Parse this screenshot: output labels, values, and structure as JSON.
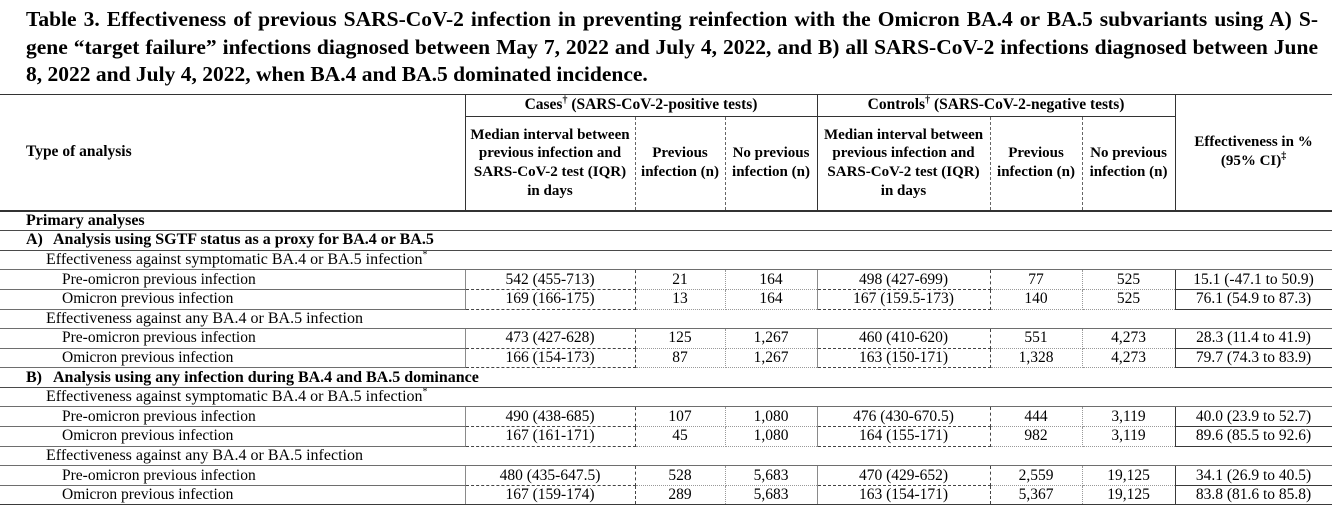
{
  "title": "Table 3. Effectiveness of previous SARS-CoV-2 infection in preventing reinfection with the Omicron BA.4 or BA.5 subvariants using A) S-gene “target failure” infections diagnosed between May 7, 2022 and July 4, 2022, and B) all SARS-CoV-2 infections diagnosed between June 8, 2022 and July 4, 2022, when BA.4 and BA.5 dominated incidence.",
  "header": {
    "type_of_analysis": "Type of analysis",
    "cases": {
      "text": "Cases",
      "sup": "†",
      "rest": " (SARS-CoV-2-positive tests)"
    },
    "controls": {
      "text": "Controls",
      "sup": "†",
      "rest": " (SARS-CoV-2-negative tests)"
    },
    "median_interval": "Median interval between previous infection and SARS-CoV-2 test (IQR) in days",
    "previous_infection": "Previous infection (n)",
    "no_previous_infection": "No previous infection (n)",
    "effectiveness": {
      "line1": "Effectiveness in %",
      "line2": "(95% CI)",
      "sup": "‡"
    }
  },
  "rows": [
    {
      "kind": "section",
      "label": "Primary analyses"
    },
    {
      "kind": "section",
      "prefix": "A)",
      "label": "Analysis using SGTF status as a proxy for BA.4 or BA.5"
    },
    {
      "kind": "subsection",
      "label": "Effectiveness against symptomatic BA.4 or BA.5 infection",
      "sup": "*"
    },
    {
      "kind": "data",
      "label": "Pre-omicron previous infection",
      "cells": [
        "542 (455-713)",
        "21",
        "164",
        "498 (427-699)",
        "77",
        "525",
        "15.1 (-47.1 to 50.9)"
      ]
    },
    {
      "kind": "data",
      "label": "Omicron previous infection",
      "cells": [
        "169 (166-175)",
        "13",
        "164",
        "167 (159.5-173)",
        "140",
        "525",
        "76.1 (54.9 to 87.3)"
      ]
    },
    {
      "kind": "subsection",
      "label": "Effectiveness against any BA.4 or BA.5 infection"
    },
    {
      "kind": "data",
      "label": "Pre-omicron previous infection",
      "cells": [
        "473 (427-628)",
        "125",
        "1,267",
        "460 (410-620)",
        "551",
        "4,273",
        "28.3 (11.4 to 41.9)"
      ]
    },
    {
      "kind": "data",
      "label": "Omicron previous infection",
      "cells": [
        "166 (154-173)",
        "87",
        "1,267",
        "163 (150-171)",
        "1,328",
        "4,273",
        "79.7 (74.3 to 83.9)"
      ]
    },
    {
      "kind": "section",
      "prefix": "B)",
      "label": "Analysis using any infection during BA.4 and BA.5 dominance"
    },
    {
      "kind": "subsection",
      "label": "Effectiveness against symptomatic BA.4 or BA.5 infection",
      "sup": "*"
    },
    {
      "kind": "data",
      "label": "Pre-omicron previous infection",
      "cells": [
        "490 (438-685)",
        "107",
        "1,080",
        "476 (430-670.5)",
        "444",
        "3,119",
        "40.0 (23.9 to 52.7)"
      ]
    },
    {
      "kind": "data",
      "label": "Omicron previous infection",
      "cells": [
        "167 (161-171)",
        "45",
        "1,080",
        "164 (155-171)",
        "982",
        "3,119",
        "89.6 (85.5 to 92.6)"
      ]
    },
    {
      "kind": "subsection",
      "label": "Effectiveness against any BA.4 or BA.5 infection"
    },
    {
      "kind": "data",
      "label": "Pre-omicron previous infection",
      "cells": [
        "480 (435-647.5)",
        "528",
        "5,683",
        "470 (429-652)",
        "2,559",
        "19,125",
        "34.1 (26.9 to 40.5)"
      ]
    },
    {
      "kind": "data",
      "label": "Omicron previous infection",
      "cells": [
        "167 (159-174)",
        "289",
        "5,683",
        "163 (154-171)",
        "5,367",
        "19,125",
        "83.8 (81.6 to 85.8)"
      ]
    }
  ]
}
